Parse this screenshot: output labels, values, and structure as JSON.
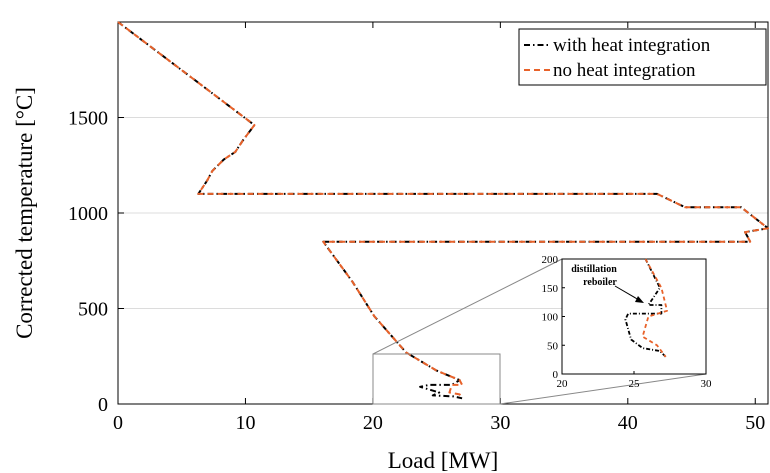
{
  "chart_data": [
    {
      "type": "line",
      "xlabel": "Load [MW]",
      "ylabel": "Corrected temperature [°C]",
      "xlim": [
        0,
        51
      ],
      "ylim": [
        0,
        2000
      ],
      "xticks": [
        0,
        10,
        20,
        30,
        40,
        50
      ],
      "yticks": [
        0,
        500,
        1000,
        1500
      ],
      "grid": "horizontal",
      "legend_position": "top-right",
      "series": [
        {
          "name": "with heat integration",
          "color": "#000000",
          "style": "dash-dot",
          "x": [
            0,
            10.7,
            9.8,
            9.2,
            8.3,
            7.4,
            7.0,
            6.3,
            42.3,
            44.5,
            48.9,
            51.0,
            49.2,
            49.6,
            16.1,
            18.4,
            20.1,
            22.6,
            25.0,
            26.8,
            26.2,
            24.4,
            23.7,
            25.2,
            24.7,
            26.3,
            27.0
          ],
          "y": [
            2000,
            1460,
            1380,
            1320,
            1280,
            1220,
            1170,
            1100,
            1100,
            1030,
            1030,
            920,
            900,
            850,
            850,
            640,
            460,
            270,
            175,
            125,
            100,
            100,
            90,
            60,
            45,
            40,
            30
          ]
        },
        {
          "name": "no heat integration",
          "color": "#e8622a",
          "style": "dashed",
          "x": [
            0,
            10.7,
            9.8,
            9.2,
            8.3,
            7.4,
            7.0,
            6.3,
            42.3,
            44.5,
            48.9,
            51.0,
            49.2,
            49.6,
            16.1,
            18.4,
            20.1,
            22.6,
            25.0,
            26.8,
            27.0,
            26.2,
            26.0,
            26.8,
            27.0
          ],
          "y": [
            2000,
            1460,
            1380,
            1320,
            1280,
            1220,
            1170,
            1100,
            1100,
            1030,
            1030,
            920,
            900,
            850,
            850,
            640,
            460,
            270,
            175,
            125,
            100,
            100,
            60,
            50,
            30
          ]
        }
      ]
    },
    {
      "type": "line",
      "panel": "inset",
      "xlim": [
        20,
        30
      ],
      "ylim": [
        0,
        200
      ],
      "xticks": [
        20,
        25,
        30
      ],
      "yticks": [
        0,
        50,
        100,
        150,
        200
      ],
      "annotation": "distillation reboiler",
      "series": [
        {
          "name": "with heat integration",
          "color": "#000000",
          "style": "dash-dot",
          "x": [
            25.8,
            26.8,
            26.0,
            26.9,
            26.9,
            24.6,
            24.4,
            24.8,
            25.6,
            26.8,
            27.2
          ],
          "y": [
            200,
            150,
            120,
            120,
            105,
            105,
            95,
            60,
            45,
            40,
            30
          ]
        },
        {
          "name": "no heat integration",
          "color": "#e8622a",
          "style": "dashed",
          "x": [
            25.8,
            26.9,
            27.3,
            26.0,
            25.6,
            26.6,
            27.2
          ],
          "y": [
            200,
            150,
            110,
            100,
            65,
            50,
            30
          ]
        }
      ]
    }
  ]
}
